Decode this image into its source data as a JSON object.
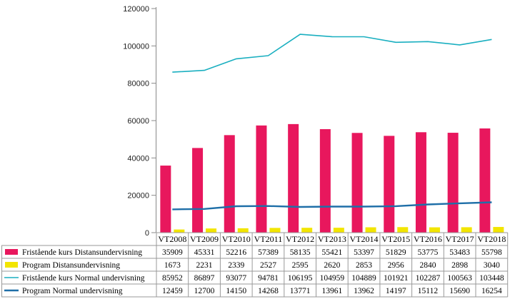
{
  "chart_data": {
    "type": "bar",
    "categories": [
      "VT2008",
      "VT2009",
      "VT2010",
      "VT2011",
      "VT2012",
      "VT2013",
      "VT2014",
      "VT2015",
      "VT2016",
      "VT2017",
      "VT2018"
    ],
    "ylim": [
      0,
      120000
    ],
    "yticks": [
      "0",
      "20000",
      "40000",
      "60000",
      "80000",
      "100000",
      "120000"
    ],
    "grid": false,
    "legend": "data-table-below",
    "series": [
      {
        "name": "Fristående kurs Distansundervisning",
        "kind": "bar",
        "color": "#E8175D",
        "values": [
          35909,
          45331,
          52216,
          57389,
          58135,
          55421,
          53397,
          51829,
          53775,
          53483,
          55798
        ]
      },
      {
        "name": "Program Distansundervisning",
        "kind": "bar",
        "color": "#F2E500",
        "values": [
          1673,
          2231,
          2339,
          2527,
          2595,
          2620,
          2853,
          2956,
          2840,
          2898,
          3040
        ]
      },
      {
        "name": "Fristående kurs Normal undervisning",
        "kind": "line",
        "color": "#1AAFC0",
        "values": [
          85952,
          86897,
          93077,
          94781,
          106195,
          104959,
          104889,
          101921,
          102287,
          100563,
          103448
        ]
      },
      {
        "name": "Program Normal undervisning",
        "kind": "line",
        "color": "#1F6FA8",
        "values": [
          12459,
          12700,
          14150,
          14268,
          13771,
          13961,
          13962,
          14197,
          15112,
          15690,
          16254
        ]
      }
    ]
  }
}
